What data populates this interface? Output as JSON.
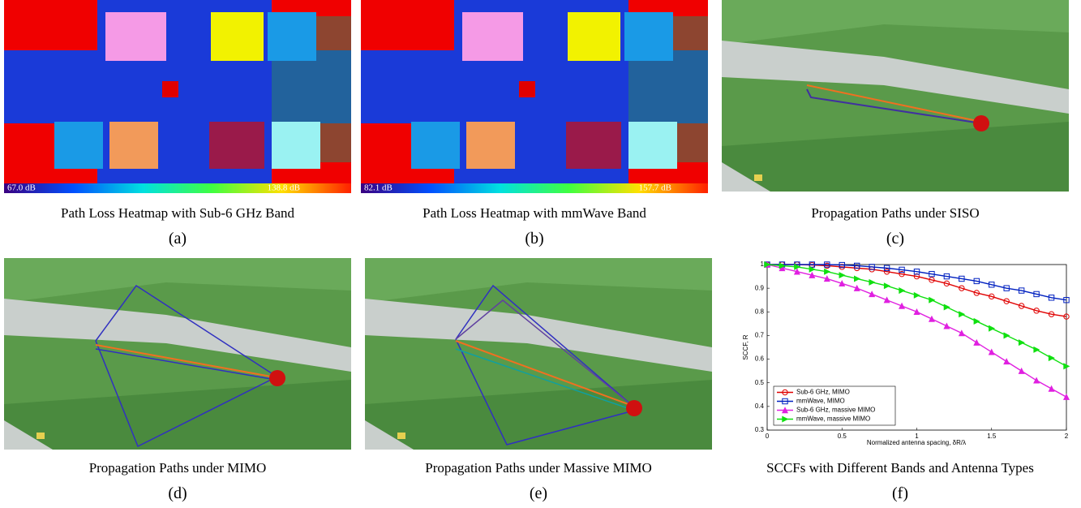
{
  "panels": [
    {
      "caption": "Path Loss Heatmap with Sub-6 GHz Band",
      "label": "(a)",
      "colorbar_min": "67.0 dB",
      "colorbar_max": "138.8 dB"
    },
    {
      "caption": "Path Loss Heatmap with mmWave Band",
      "label": "(b)",
      "colorbar_min": "82.1 dB",
      "colorbar_max": "157.7 dB"
    },
    {
      "caption": "Propagation Paths under SISO",
      "label": "(c)"
    },
    {
      "caption": "Propagation Paths under MIMO",
      "label": "(d)"
    },
    {
      "caption": "Propagation Paths under Massive MIMO",
      "label": "(e)"
    },
    {
      "caption": "SCCFs with Different Bands and Antenna Types",
      "label": "(f)"
    }
  ],
  "chart_data": {
    "type": "line",
    "xlabel": "Normalized antenna spacing, δR/λ",
    "ylabel": "SCCF, R",
    "x": [
      0,
      0.1,
      0.2,
      0.3,
      0.4,
      0.5,
      0.6,
      0.7,
      0.8,
      0.9,
      1.0,
      1.1,
      1.2,
      1.3,
      1.4,
      1.5,
      1.6,
      1.7,
      1.8,
      1.9,
      2.0
    ],
    "xlim": [
      0,
      2
    ],
    "xticks": [
      0,
      0.5,
      1,
      1.5,
      2
    ],
    "ylim": [
      0.3,
      1
    ],
    "yticks": [
      0.3,
      0.4,
      0.5,
      0.6,
      0.7,
      0.8,
      0.9,
      1
    ],
    "legend": "lower-left",
    "series": [
      {
        "name": "Sub-6 GHz, MIMO",
        "color": "#e00000",
        "marker": "circle",
        "values": [
          1,
          1,
          1,
          0.998,
          0.995,
          0.99,
          0.985,
          0.98,
          0.97,
          0.96,
          0.95,
          0.935,
          0.92,
          0.9,
          0.88,
          0.865,
          0.845,
          0.825,
          0.805,
          0.79,
          0.78
        ]
      },
      {
        "name": "mmWave, MIMO",
        "color": "#0020c0",
        "marker": "square",
        "values": [
          1,
          1,
          1,
          1,
          1,
          0.998,
          0.995,
          0.99,
          0.985,
          0.978,
          0.97,
          0.96,
          0.95,
          0.94,
          0.93,
          0.915,
          0.9,
          0.89,
          0.875,
          0.86,
          0.85
        ]
      },
      {
        "name": "Sub-6 GHz, massive MIMO",
        "color": "#e020e0",
        "marker": "triangle-up",
        "values": [
          1,
          0.985,
          0.97,
          0.955,
          0.94,
          0.92,
          0.9,
          0.875,
          0.85,
          0.825,
          0.8,
          0.77,
          0.74,
          0.71,
          0.67,
          0.63,
          0.59,
          0.55,
          0.51,
          0.475,
          0.44
        ]
      },
      {
        "name": "mmWave, massive MIMO",
        "color": "#10e010",
        "marker": "triangle-right",
        "values": [
          1,
          0.995,
          0.99,
          0.98,
          0.97,
          0.955,
          0.94,
          0.925,
          0.91,
          0.89,
          0.87,
          0.85,
          0.82,
          0.79,
          0.76,
          0.73,
          0.7,
          0.67,
          0.64,
          0.605,
          0.57
        ]
      }
    ]
  }
}
